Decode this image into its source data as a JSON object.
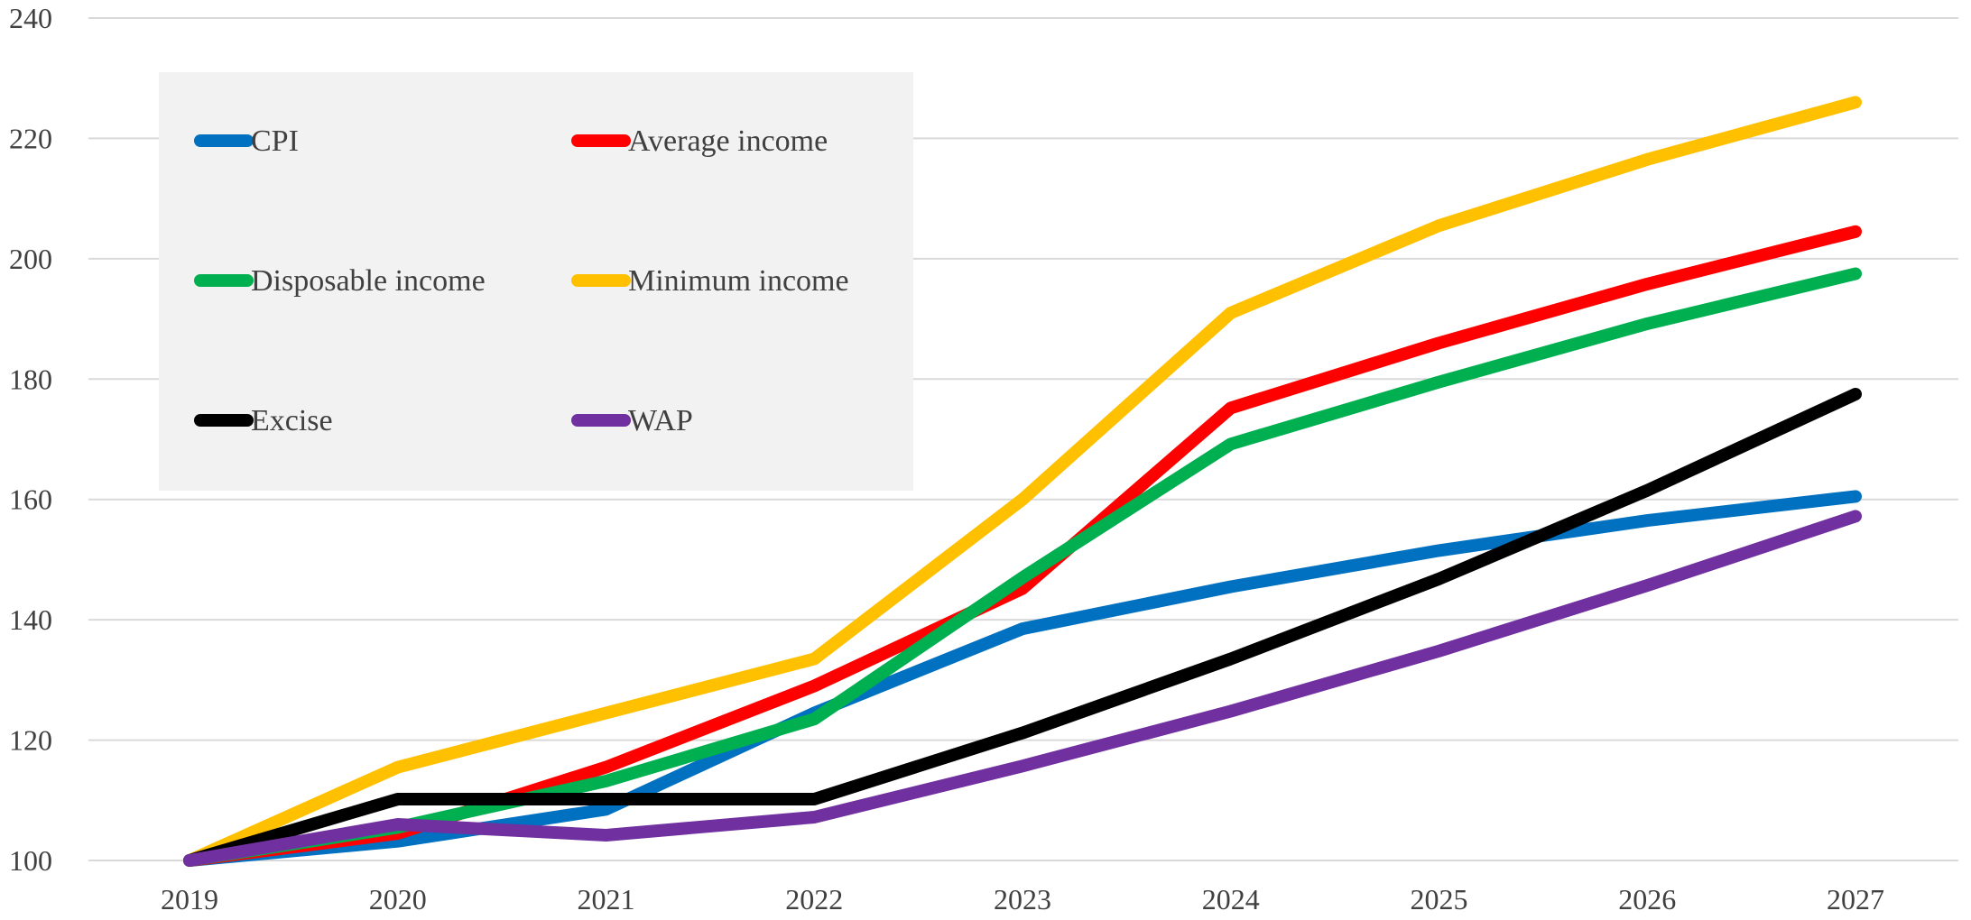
{
  "chart_data": {
    "type": "line",
    "title": "",
    "xlabel": "",
    "ylabel": "",
    "x": [
      "2019",
      "2020",
      "2021",
      "2022",
      "2023",
      "2024",
      "2025",
      "2026",
      "2027"
    ],
    "ylim": [
      100,
      240
    ],
    "yticks": [
      100,
      120,
      140,
      160,
      180,
      200,
      220,
      240
    ],
    "grid": true,
    "legend_position": "top-left",
    "series": [
      {
        "name": "CPI",
        "color": "#0070C0",
        "values": [
          100,
          103.2,
          108.5,
          124.5,
          138.5,
          145.5,
          151.5,
          156.5,
          160.5
        ]
      },
      {
        "name": "Average income",
        "color": "#FF0000",
        "values": [
          100,
          104.5,
          115.5,
          129.0,
          145.2,
          175.2,
          186.0,
          195.8,
          204.5
        ]
      },
      {
        "name": "Disposable income",
        "color": "#00B050",
        "values": [
          100,
          105.5,
          113.2,
          123.5,
          147.0,
          169.2,
          179.5,
          189.2,
          197.5
        ]
      },
      {
        "name": "Minimum income",
        "color": "#FFC000",
        "values": [
          100,
          115.5,
          124.5,
          133.5,
          160.0,
          191.0,
          205.5,
          216.5,
          226.0
        ]
      },
      {
        "name": "Excise",
        "color": "#000000",
        "values": [
          100,
          110.2,
          110.2,
          110.2,
          121.2,
          133.5,
          146.8,
          161.5,
          177.5
        ]
      },
      {
        "name": "WAP",
        "color": "#7030A0",
        "values": [
          100,
          106.0,
          104.2,
          107.2,
          115.7,
          124.8,
          134.8,
          145.7,
          157.2
        ]
      }
    ]
  }
}
